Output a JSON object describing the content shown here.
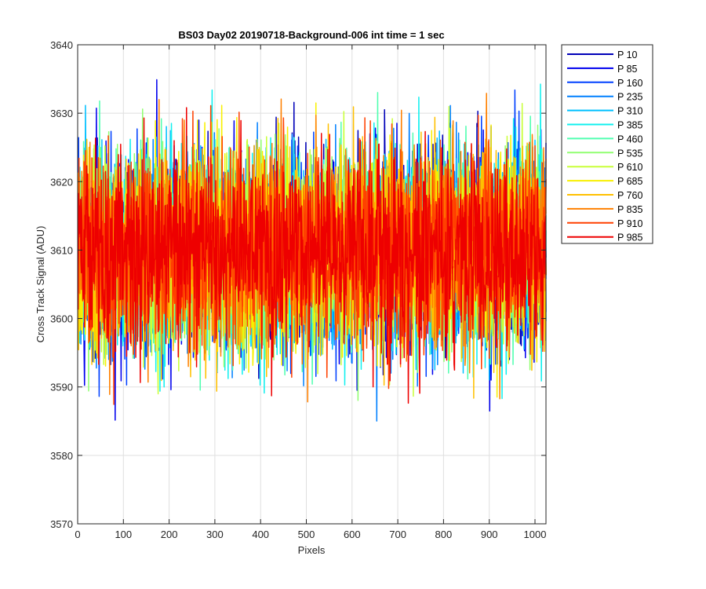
{
  "chart_data": {
    "type": "line",
    "title": "BS03 Day02 20190718-Background-006 int time = 1 sec",
    "xlabel": "Pixels",
    "ylabel": "Cross Track Signal (ADU)",
    "xlim": [
      0,
      1024
    ],
    "ylim": [
      3570,
      3640
    ],
    "x_ticks": [
      0,
      100,
      200,
      300,
      400,
      500,
      600,
      700,
      800,
      900,
      1000
    ],
    "y_ticks": [
      3570,
      3580,
      3590,
      3600,
      3610,
      3620,
      3630,
      3640
    ],
    "grid": true,
    "legend_position": "outside-top-right",
    "x": "pixel index 1–1024",
    "signal_summary": {
      "center": 3610,
      "typical_range": [
        3590,
        3630
      ],
      "extreme_min": 3576,
      "extreme_max": 3638
    },
    "series": [
      {
        "name": "P 10",
        "color": "#0000b8"
      },
      {
        "name": "P 85",
        "color": "#0000ee"
      },
      {
        "name": "P 160",
        "color": "#0040ff"
      },
      {
        "name": "P 235",
        "color": "#0080ff"
      },
      {
        "name": "P 310",
        "color": "#00c0ff"
      },
      {
        "name": "P 385",
        "color": "#10f0ef"
      },
      {
        "name": "P 460",
        "color": "#50ffb0"
      },
      {
        "name": "P 535",
        "color": "#90ff70"
      },
      {
        "name": "P 610",
        "color": "#c8ff38"
      },
      {
        "name": "P 685",
        "color": "#f8f000"
      },
      {
        "name": "P 760",
        "color": "#ffc000"
      },
      {
        "name": "P 835",
        "color": "#ff8000"
      },
      {
        "name": "P 910",
        "color": "#ff4000"
      },
      {
        "name": "P 985",
        "color": "#ee0000"
      }
    ]
  }
}
